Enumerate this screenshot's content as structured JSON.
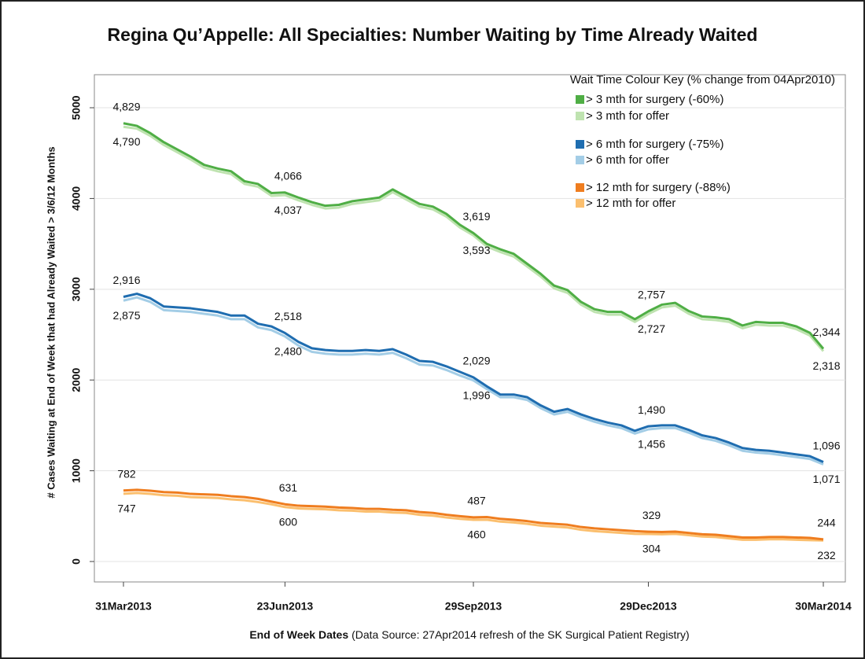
{
  "chart_data": {
    "type": "line",
    "title": "Regina Qu’Appelle: All Specialties: Number Waiting by Time Already Waited",
    "y_label": "# Cases Waiting at End of Week that had Already Waited > 3/6/12 Months",
    "x_label": "End of Week Dates",
    "x_label_note": "(Data Source: 27Apr2014 refresh of the SK Surgical Patient Registry)",
    "legend_title": "Wait Time Colour Key (% change from 04Apr2010)",
    "legend_position": "upper right",
    "grid": true,
    "ylim": [
      -225,
      5364
    ],
    "yticks": [
      0,
      1000,
      2000,
      3000,
      4000,
      5000
    ],
    "categories": [
      "31Mar2013",
      null,
      null,
      null,
      null,
      null,
      null,
      null,
      null,
      null,
      null,
      null,
      "23Jun2013",
      null,
      null,
      null,
      null,
      null,
      null,
      null,
      null,
      null,
      null,
      null,
      null,
      null,
      "29Sep2013",
      null,
      null,
      null,
      null,
      null,
      null,
      null,
      null,
      null,
      null,
      null,
      null,
      "29Dec2013",
      null,
      null,
      null,
      null,
      null,
      null,
      null,
      null,
      null,
      null,
      null,
      null,
      "30Mar2014"
    ],
    "series": [
      {
        "name": "> 3 mth for surgery (-60%)",
        "color": "#4fae45",
        "label_side": "above",
        "values": [
          4829,
          4800,
          4720,
          4620,
          4540,
          4460,
          4370,
          4330,
          4300,
          4190,
          4160,
          4060,
          4066,
          4010,
          3960,
          3920,
          3930,
          3970,
          3990,
          4010,
          4100,
          4020,
          3940,
          3910,
          3830,
          3710,
          3619,
          3500,
          3440,
          3390,
          3280,
          3170,
          3040,
          2990,
          2860,
          2780,
          2750,
          2750,
          2670,
          2757,
          2830,
          2850,
          2760,
          2700,
          2690,
          2670,
          2600,
          2640,
          2630,
          2630,
          2590,
          2520,
          2344
        ],
        "value_labels": [
          "4,829",
          null,
          null,
          null,
          null,
          null,
          null,
          null,
          null,
          null,
          null,
          null,
          "4,066",
          null,
          null,
          null,
          null,
          null,
          null,
          null,
          null,
          null,
          null,
          null,
          null,
          null,
          "3,619",
          null,
          null,
          null,
          null,
          null,
          null,
          null,
          null,
          null,
          null,
          null,
          null,
          "2,757",
          null,
          null,
          null,
          null,
          null,
          null,
          null,
          null,
          null,
          null,
          null,
          null,
          "2,344"
        ]
      },
      {
        "name": "> 3 mth for offer",
        "color": "#bfe3b0",
        "label_side": "below",
        "values": [
          4790,
          4770,
          4690,
          4590,
          4510,
          4430,
          4340,
          4300,
          4270,
          4160,
          4130,
          4030,
          4037,
          3980,
          3930,
          3890,
          3900,
          3940,
          3960,
          3980,
          4070,
          3990,
          3910,
          3880,
          3800,
          3680,
          3593,
          3470,
          3410,
          3360,
          3250,
          3140,
          3010,
          2960,
          2830,
          2750,
          2720,
          2720,
          2640,
          2727,
          2800,
          2820,
          2730,
          2670,
          2660,
          2640,
          2570,
          2610,
          2600,
          2600,
          2560,
          2490,
          2318
        ],
        "value_labels": [
          "4,790",
          null,
          null,
          null,
          null,
          null,
          null,
          null,
          null,
          null,
          null,
          null,
          "4,037",
          null,
          null,
          null,
          null,
          null,
          null,
          null,
          null,
          null,
          null,
          null,
          null,
          null,
          "3,593",
          null,
          null,
          null,
          null,
          null,
          null,
          null,
          null,
          null,
          null,
          null,
          null,
          "2,727",
          null,
          null,
          null,
          null,
          null,
          null,
          null,
          null,
          null,
          null,
          null,
          null,
          "2,318"
        ]
      },
      {
        "name": "> 6 mth for surgery (-75%)",
        "color": "#1f6db0",
        "label_side": "above",
        "values": [
          2916,
          2950,
          2900,
          2810,
          2800,
          2790,
          2770,
          2750,
          2710,
          2710,
          2620,
          2590,
          2518,
          2420,
          2350,
          2330,
          2320,
          2320,
          2330,
          2320,
          2340,
          2280,
          2210,
          2200,
          2150,
          2090,
          2029,
          1930,
          1840,
          1840,
          1810,
          1720,
          1650,
          1680,
          1620,
          1570,
          1530,
          1500,
          1440,
          1490,
          1500,
          1500,
          1450,
          1390,
          1360,
          1310,
          1250,
          1230,
          1220,
          1200,
          1180,
          1160,
          1096
        ],
        "value_labels": [
          "2,916",
          null,
          null,
          null,
          null,
          null,
          null,
          null,
          null,
          null,
          null,
          null,
          "2,518",
          null,
          null,
          null,
          null,
          null,
          null,
          null,
          null,
          null,
          null,
          null,
          null,
          null,
          "2,029",
          null,
          null,
          null,
          null,
          null,
          null,
          null,
          null,
          null,
          null,
          null,
          null,
          "1,490",
          null,
          null,
          null,
          null,
          null,
          null,
          null,
          null,
          null,
          null,
          null,
          null,
          "1,096"
        ]
      },
      {
        "name": "> 6 mth for offer",
        "color": "#a3cde6",
        "label_side": "below",
        "values": [
          2875,
          2910,
          2860,
          2770,
          2760,
          2750,
          2730,
          2710,
          2670,
          2670,
          2580,
          2550,
          2480,
          2380,
          2310,
          2290,
          2280,
          2280,
          2290,
          2280,
          2300,
          2240,
          2170,
          2160,
          2110,
          2050,
          1996,
          1900,
          1810,
          1810,
          1780,
          1690,
          1620,
          1650,
          1590,
          1540,
          1500,
          1470,
          1410,
          1456,
          1470,
          1470,
          1420,
          1360,
          1330,
          1280,
          1220,
          1200,
          1190,
          1170,
          1150,
          1130,
          1071
        ],
        "value_labels": [
          "2,875",
          null,
          null,
          null,
          null,
          null,
          null,
          null,
          null,
          null,
          null,
          null,
          "2,480",
          null,
          null,
          null,
          null,
          null,
          null,
          null,
          null,
          null,
          null,
          null,
          null,
          null,
          "1,996",
          null,
          null,
          null,
          null,
          null,
          null,
          null,
          null,
          null,
          null,
          null,
          null,
          "1,456",
          null,
          null,
          null,
          null,
          null,
          null,
          null,
          null,
          null,
          null,
          null,
          null,
          "1,071"
        ]
      },
      {
        "name": "> 12 mth for surgery (-88%)",
        "color": "#ef7d1f",
        "label_side": "above",
        "values": [
          782,
          790,
          780,
          765,
          760,
          745,
          740,
          735,
          720,
          710,
          690,
          660,
          631,
          615,
          610,
          605,
          595,
          590,
          580,
          580,
          570,
          565,
          545,
          535,
          515,
          500,
          487,
          490,
          470,
          460,
          445,
          425,
          415,
          405,
          380,
          365,
          355,
          345,
          335,
          329,
          325,
          330,
          315,
          300,
          295,
          280,
          265,
          265,
          270,
          270,
          265,
          260,
          244
        ],
        "value_labels": [
          "782",
          null,
          null,
          null,
          null,
          null,
          null,
          null,
          null,
          null,
          null,
          null,
          "631",
          null,
          null,
          null,
          null,
          null,
          null,
          null,
          null,
          null,
          null,
          null,
          null,
          null,
          "487",
          null,
          null,
          null,
          null,
          null,
          null,
          null,
          null,
          null,
          null,
          null,
          null,
          "329",
          null,
          null,
          null,
          null,
          null,
          null,
          null,
          null,
          null,
          null,
          null,
          null,
          "244"
        ]
      },
      {
        "name": "> 12 mth for offer",
        "color": "#fbbf6e",
        "label_side": "below",
        "values": [
          747,
          755,
          745,
          730,
          725,
          710,
          705,
          700,
          685,
          675,
          655,
          630,
          600,
          585,
          580,
          575,
          565,
          560,
          550,
          550,
          540,
          535,
          515,
          505,
          485,
          470,
          460,
          460,
          440,
          430,
          415,
          395,
          385,
          375,
          350,
          335,
          325,
          315,
          305,
          304,
          300,
          305,
          290,
          275,
          270,
          255,
          240,
          240,
          245,
          245,
          240,
          235,
          232
        ],
        "value_labels": [
          "747",
          null,
          null,
          null,
          null,
          null,
          null,
          null,
          null,
          null,
          null,
          null,
          "600",
          null,
          null,
          null,
          null,
          null,
          null,
          null,
          null,
          null,
          null,
          null,
          null,
          null,
          "460",
          null,
          null,
          null,
          null,
          null,
          null,
          null,
          null,
          null,
          null,
          null,
          null,
          "304",
          null,
          null,
          null,
          null,
          null,
          null,
          null,
          null,
          null,
          null,
          null,
          null,
          "232"
        ]
      }
    ]
  }
}
